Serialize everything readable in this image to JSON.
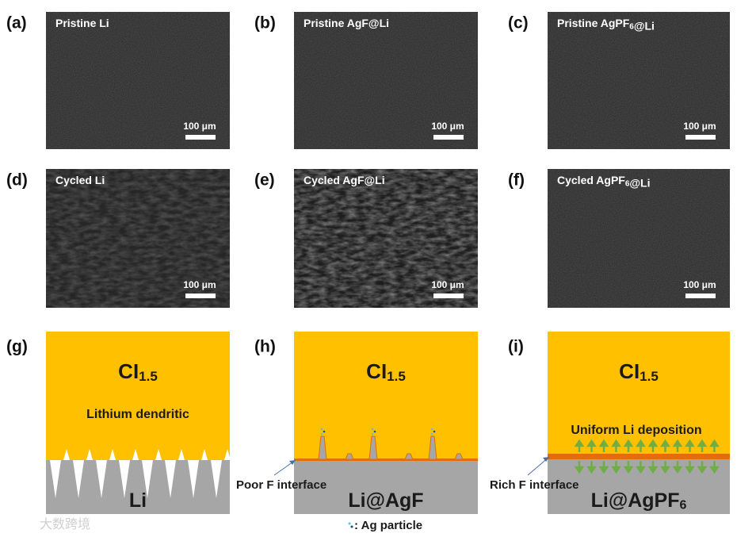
{
  "sem_panels": [
    {
      "label": "(a)",
      "title": [
        {
          "text": "Pristine Li"
        }
      ],
      "scale": "100 μm"
    },
    {
      "label": "(b)",
      "title": [
        {
          "text": "Pristine AgF@Li"
        }
      ],
      "scale": "100 μm"
    },
    {
      "label": "(c)",
      "title": [
        {
          "text": "Pristine AgPF"
        },
        {
          "sub": "6"
        },
        {
          "text": "@Li"
        }
      ],
      "scale": "100 μm"
    },
    {
      "label": "(d)",
      "title": [
        {
          "text": "Cycled Li"
        }
      ],
      "scale": "100 μm"
    },
    {
      "label": "(e)",
      "title": [
        {
          "text": "Cycled AgF@Li"
        }
      ],
      "scale": "100 μm"
    },
    {
      "label": "(f)",
      "title": [
        {
          "text": "Cycled AgPF"
        },
        {
          "sub": "6"
        },
        {
          "text": "@Li"
        }
      ],
      "scale": "100 μm"
    }
  ],
  "schematics": [
    {
      "label": "(g)",
      "top": [
        {
          "text": "CI"
        },
        {
          "sub": "1.5"
        }
      ],
      "caption": "Lithium dendritic",
      "bottom": [
        {
          "text": "Li"
        }
      ]
    },
    {
      "label": "(h)",
      "top": [
        {
          "text": "CI"
        },
        {
          "sub": "1.5"
        }
      ],
      "callout": "Poor F interface",
      "bottom": [
        {
          "text": "Li@AgF"
        }
      ],
      "legend": ": Ag particle"
    },
    {
      "label": "(i)",
      "top": [
        {
          "text": "CI"
        },
        {
          "sub": "1.5"
        }
      ],
      "caption": "Uniform Li deposition",
      "callout": "Rich F interface",
      "bottom": [
        {
          "text": "Li@AgPF"
        },
        {
          "sub": "6"
        }
      ]
    }
  ],
  "watermark": "大数跨境"
}
